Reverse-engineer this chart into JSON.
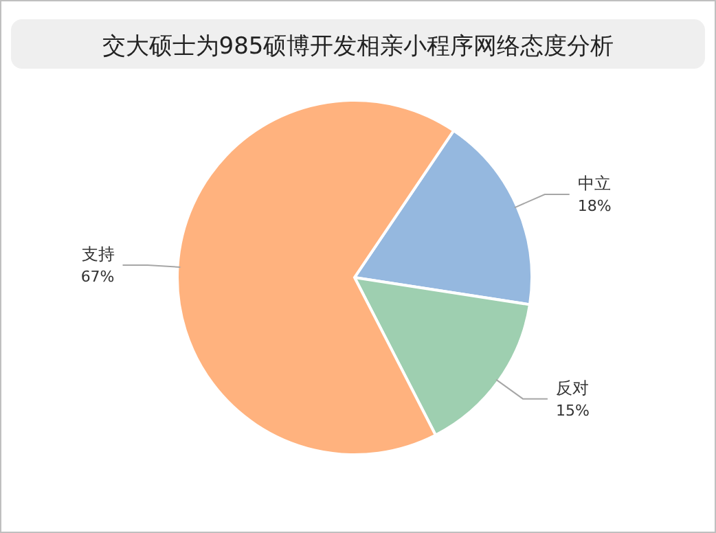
{
  "chart_data": {
    "type": "pie",
    "title": "交大硕士为985硕博开发相亲小程序网络态度分析",
    "categories": [
      "中立",
      "反对",
      "支持"
    ],
    "values": [
      18,
      15,
      67
    ],
    "colors": [
      "#95b8df",
      "#9ecfb0",
      "#ffb27e"
    ],
    "value_labels": [
      "18%",
      "15%",
      "67%"
    ]
  }
}
